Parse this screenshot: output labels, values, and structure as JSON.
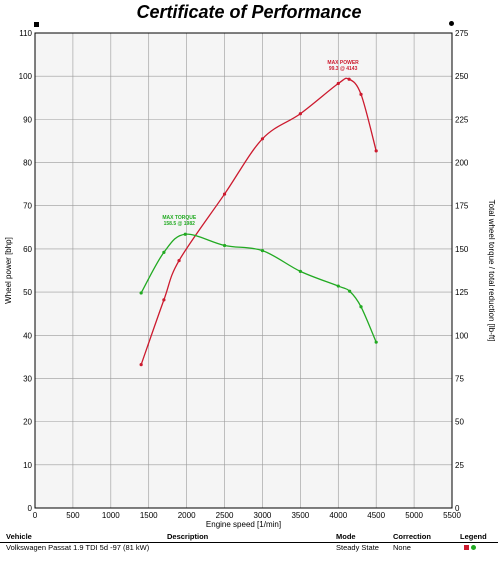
{
  "title": "Certificate of Performance",
  "chart_data": {
    "type": "line",
    "xlabel": "Engine speed [1/min]",
    "ylabel_left": "Wheel power [bhp]",
    "ylabel_right": "Total wheel torque / total reduction [lb-ft]",
    "xlim": [
      0,
      5500
    ],
    "ylim_left": [
      0,
      110
    ],
    "ylim_right": [
      0,
      275
    ],
    "x_ticks": [
      0,
      500,
      1000,
      1500,
      2000,
      2500,
      3000,
      3500,
      4000,
      4500,
      5000,
      5500
    ],
    "y_ticks_left": [
      0,
      10,
      20,
      30,
      40,
      50,
      60,
      70,
      80,
      90,
      100,
      110
    ],
    "y_ticks_right": [
      0,
      25,
      50,
      75,
      100,
      125,
      150,
      175,
      200,
      225,
      250,
      275
    ],
    "grid": true,
    "series": [
      {
        "axis": "left",
        "color": "#cc1a2e",
        "x": [
          1400,
          1700,
          1900,
          2500,
          3000,
          3500,
          4000,
          4143,
          4300,
          4500
        ],
        "y": [
          33.2,
          48.2,
          57.3,
          72.7,
          85.5,
          91.3,
          98.3,
          99.3,
          95.8,
          82.7
        ]
      },
      {
        "axis": "right",
        "color": "#22aa22",
        "x": [
          1400,
          1700,
          1982,
          2500,
          3000,
          3500,
          4000,
          4150,
          4300,
          4500
        ],
        "y": [
          124.5,
          148,
          158.5,
          152,
          149,
          137,
          128.5,
          125.5,
          116.5,
          96
        ]
      }
    ],
    "annotations": [
      {
        "label": "MAX POWER",
        "value": "99.3 @ 4143",
        "x": 4143,
        "y": 99.3,
        "axis": "left",
        "color": "#cc1a2e"
      },
      {
        "label": "MAX TORQUE",
        "value": "158.5 @ 1982",
        "x": 1982,
        "y": 158.5,
        "axis": "right",
        "color": "#22aa22"
      }
    ]
  },
  "info": {
    "headers": {
      "vehicle": "Vehicle",
      "description": "Description",
      "mode": "Mode",
      "correction": "Correction",
      "legend": "Legend"
    },
    "values": {
      "vehicle": "Volkswagen Passat 1.9 TDI 5d -97 (81 kW)",
      "description": "",
      "mode": "Steady State",
      "correction": "None"
    },
    "legend_colors": [
      "#cc1a2e",
      "#22aa22"
    ]
  }
}
